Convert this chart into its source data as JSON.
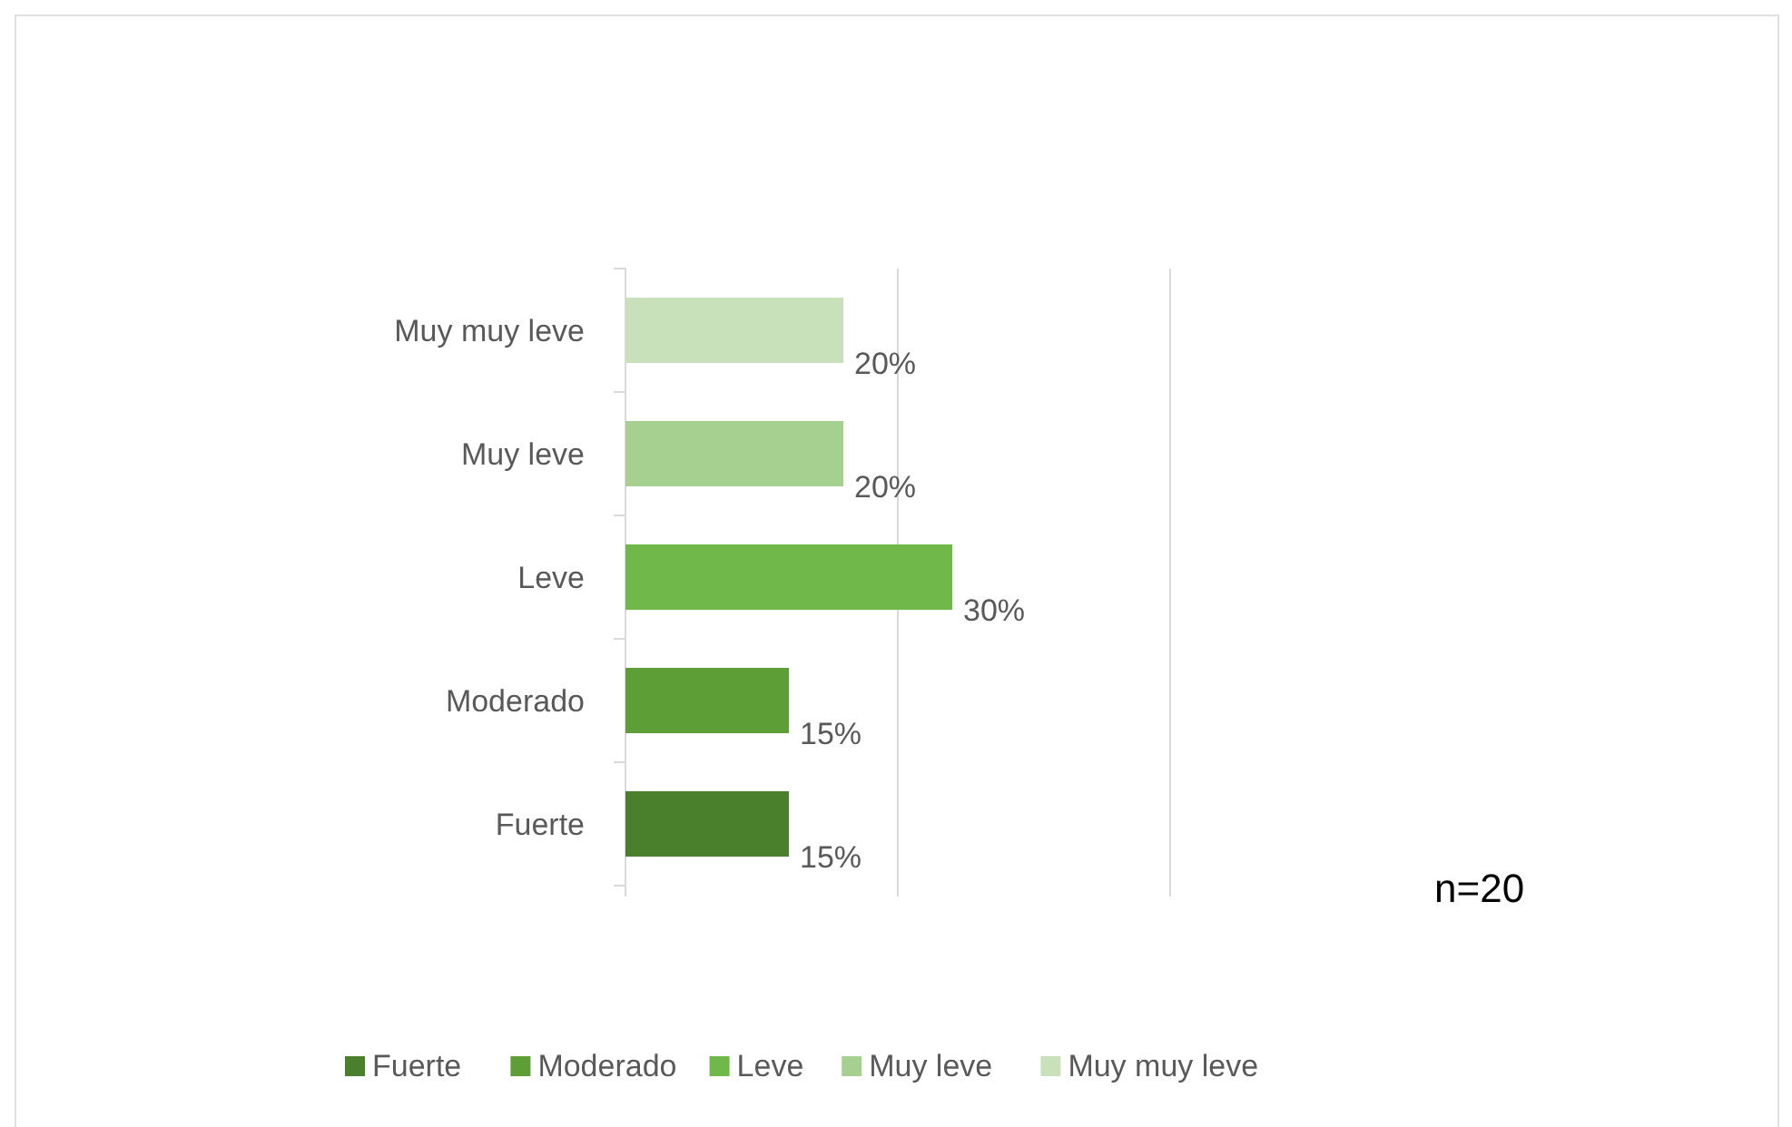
{
  "chart_data": {
    "type": "bar",
    "orientation": "horizontal",
    "categories": [
      "Muy muy leve",
      "Muy leve",
      "Leve",
      "Moderado",
      "Fuerte"
    ],
    "series": [
      {
        "name": "Fuerte",
        "color": "#4a7f2c",
        "values": [
          null,
          null,
          null,
          null,
          15
        ],
        "value_labels": [
          null,
          null,
          null,
          null,
          "15%"
        ]
      },
      {
        "name": "Moderado",
        "color": "#5e9e36",
        "values": [
          null,
          null,
          null,
          15,
          null
        ],
        "value_labels": [
          null,
          null,
          null,
          "15%",
          null
        ]
      },
      {
        "name": "Leve",
        "color": "#70b84a",
        "values": [
          null,
          null,
          30,
          null,
          null
        ],
        "value_labels": [
          null,
          null,
          "30%",
          null,
          null
        ]
      },
      {
        "name": "Muy leve",
        "color": "#a6d08f",
        "values": [
          null,
          20,
          null,
          null,
          null
        ],
        "value_labels": [
          null,
          "20%",
          null,
          null,
          null
        ]
      },
      {
        "name": "Muy muy leve",
        "color": "#c9e1bb",
        "values": [
          20,
          null,
          null,
          null,
          null
        ],
        "value_labels": [
          "20%",
          null,
          null,
          null,
          null
        ]
      }
    ],
    "xlim": [
      0,
      50
    ],
    "xticks": [
      {
        "value": 0,
        "label": null
      },
      {
        "value": 25,
        "label": null
      },
      {
        "value": 50,
        "label": null
      }
    ],
    "tick_labels": "y",
    "legend": "bottom",
    "ref_lines": [
      {
        "axis": "x",
        "value": 25,
        "color": "#d9d9d9"
      }
    ],
    "annotations": [
      "n=20"
    ]
  }
}
